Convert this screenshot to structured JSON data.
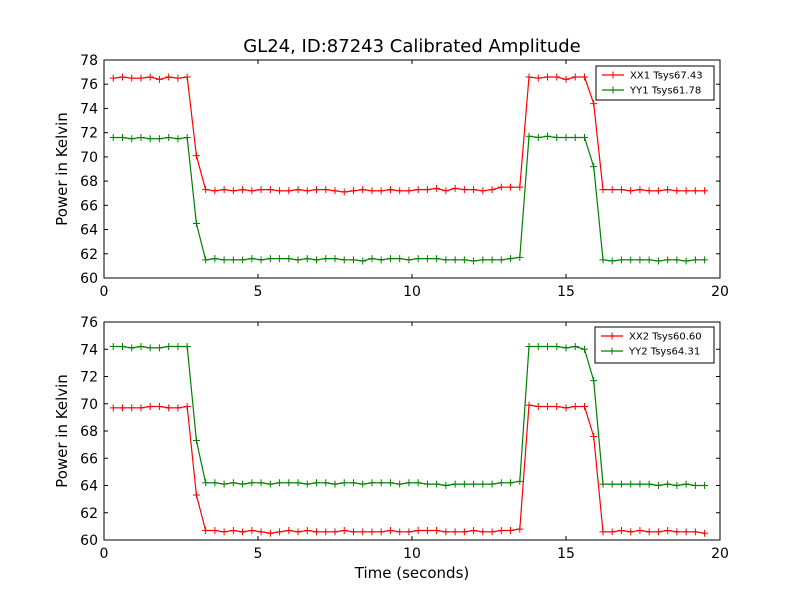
{
  "chart_data": [
    {
      "type": "line",
      "title": "GL24, ID:87243 Calibrated Amplitude",
      "xlabel": "",
      "ylabel": "Power in Kelvin",
      "xlim": [
        0,
        20
      ],
      "ylim": [
        60,
        78
      ],
      "xticks": [
        0,
        5,
        10,
        15,
        20
      ],
      "yticks": [
        60,
        62,
        64,
        66,
        68,
        70,
        72,
        74,
        76,
        78
      ],
      "legend_position": "top-right",
      "grid": false,
      "series": [
        {
          "name": "XX1 Tsys67.43",
          "color": "#ff0000",
          "x": [
            0.3,
            0.6,
            0.9,
            1.2,
            1.5,
            1.8,
            2.1,
            2.4,
            2.7,
            3.0,
            3.3,
            3.6,
            3.9,
            4.2,
            4.5,
            4.8,
            5.1,
            5.4,
            5.7,
            6.0,
            6.3,
            6.6,
            6.9,
            7.2,
            7.5,
            7.8,
            8.1,
            8.4,
            8.7,
            9.0,
            9.3,
            9.6,
            9.9,
            10.2,
            10.5,
            10.8,
            11.1,
            11.4,
            11.7,
            12.0,
            12.3,
            12.6,
            12.9,
            13.2,
            13.5,
            13.8,
            14.1,
            14.4,
            14.7,
            15.0,
            15.3,
            15.6,
            15.9,
            16.2,
            16.5,
            16.8,
            17.1,
            17.4,
            17.7,
            18.0,
            18.3,
            18.6,
            18.9,
            19.2,
            19.5
          ],
          "y": [
            76.5,
            76.6,
            76.5,
            76.5,
            76.6,
            76.4,
            76.6,
            76.5,
            76.6,
            70.1,
            67.3,
            67.2,
            67.3,
            67.2,
            67.3,
            67.2,
            67.3,
            67.3,
            67.2,
            67.2,
            67.3,
            67.2,
            67.3,
            67.3,
            67.2,
            67.1,
            67.2,
            67.3,
            67.2,
            67.2,
            67.3,
            67.2,
            67.2,
            67.3,
            67.3,
            67.4,
            67.2,
            67.4,
            67.3,
            67.3,
            67.2,
            67.3,
            67.5,
            67.5,
            67.5,
            76.6,
            76.5,
            76.6,
            76.6,
            76.4,
            76.6,
            76.6,
            74.4,
            67.3,
            67.3,
            67.3,
            67.2,
            67.3,
            67.2,
            67.2,
            67.3,
            67.2,
            67.2,
            67.2,
            67.2
          ]
        },
        {
          "name": "YY1 Tsys61.78",
          "color": "#008000",
          "x": [
            0.3,
            0.6,
            0.9,
            1.2,
            1.5,
            1.8,
            2.1,
            2.4,
            2.7,
            3.0,
            3.3,
            3.6,
            3.9,
            4.2,
            4.5,
            4.8,
            5.1,
            5.4,
            5.7,
            6.0,
            6.3,
            6.6,
            6.9,
            7.2,
            7.5,
            7.8,
            8.1,
            8.4,
            8.7,
            9.0,
            9.3,
            9.6,
            9.9,
            10.2,
            10.5,
            10.8,
            11.1,
            11.4,
            11.7,
            12.0,
            12.3,
            12.6,
            12.9,
            13.2,
            13.5,
            13.8,
            14.1,
            14.4,
            14.7,
            15.0,
            15.3,
            15.6,
            15.9,
            16.2,
            16.5,
            16.8,
            17.1,
            17.4,
            17.7,
            18.0,
            18.3,
            18.6,
            18.9,
            19.2,
            19.5
          ],
          "y": [
            71.6,
            71.6,
            71.5,
            71.6,
            71.5,
            71.5,
            71.6,
            71.5,
            71.6,
            64.5,
            61.5,
            61.6,
            61.5,
            61.5,
            61.5,
            61.6,
            61.5,
            61.6,
            61.6,
            61.6,
            61.5,
            61.6,
            61.5,
            61.6,
            61.6,
            61.5,
            61.5,
            61.4,
            61.6,
            61.5,
            61.6,
            61.6,
            61.5,
            61.6,
            61.6,
            61.6,
            61.5,
            61.5,
            61.5,
            61.4,
            61.5,
            61.5,
            61.5,
            61.6,
            61.7,
            71.7,
            71.6,
            71.7,
            71.6,
            71.6,
            71.6,
            71.6,
            69.2,
            61.5,
            61.4,
            61.5,
            61.5,
            61.5,
            61.5,
            61.4,
            61.5,
            61.5,
            61.4,
            61.5,
            61.5
          ]
        }
      ]
    },
    {
      "type": "line",
      "title": "",
      "xlabel": "Time (seconds)",
      "ylabel": "Power in Kelvin",
      "xlim": [
        0,
        20
      ],
      "ylim": [
        60,
        76
      ],
      "xticks": [
        0,
        5,
        10,
        15,
        20
      ],
      "yticks": [
        60,
        62,
        64,
        66,
        68,
        70,
        72,
        74,
        76
      ],
      "legend_position": "top-right",
      "grid": false,
      "series": [
        {
          "name": "XX2 Tsys60.60",
          "color": "#ff0000",
          "x": [
            0.3,
            0.6,
            0.9,
            1.2,
            1.5,
            1.8,
            2.1,
            2.4,
            2.7,
            3.0,
            3.3,
            3.6,
            3.9,
            4.2,
            4.5,
            4.8,
            5.1,
            5.4,
            5.7,
            6.0,
            6.3,
            6.6,
            6.9,
            7.2,
            7.5,
            7.8,
            8.1,
            8.4,
            8.7,
            9.0,
            9.3,
            9.6,
            9.9,
            10.2,
            10.5,
            10.8,
            11.1,
            11.4,
            11.7,
            12.0,
            12.3,
            12.6,
            12.9,
            13.2,
            13.5,
            13.8,
            14.1,
            14.4,
            14.7,
            15.0,
            15.3,
            15.6,
            15.9,
            16.2,
            16.5,
            16.8,
            17.1,
            17.4,
            17.7,
            18.0,
            18.3,
            18.6,
            18.9,
            19.2,
            19.5
          ],
          "y": [
            69.7,
            69.7,
            69.7,
            69.7,
            69.8,
            69.8,
            69.7,
            69.7,
            69.8,
            63.3,
            60.7,
            60.7,
            60.6,
            60.7,
            60.6,
            60.7,
            60.6,
            60.5,
            60.6,
            60.7,
            60.6,
            60.7,
            60.6,
            60.6,
            60.6,
            60.7,
            60.6,
            60.6,
            60.6,
            60.6,
            60.7,
            60.6,
            60.6,
            60.7,
            60.7,
            60.7,
            60.6,
            60.6,
            60.6,
            60.7,
            60.6,
            60.6,
            60.7,
            60.7,
            60.8,
            69.9,
            69.8,
            69.8,
            69.8,
            69.7,
            69.8,
            69.8,
            67.6,
            60.6,
            60.6,
            60.7,
            60.6,
            60.7,
            60.6,
            60.6,
            60.7,
            60.6,
            60.6,
            60.6,
            60.5
          ]
        },
        {
          "name": "YY2 Tsys64.31",
          "color": "#008000",
          "x": [
            0.3,
            0.6,
            0.9,
            1.2,
            1.5,
            1.8,
            2.1,
            2.4,
            2.7,
            3.0,
            3.3,
            3.6,
            3.9,
            4.2,
            4.5,
            4.8,
            5.1,
            5.4,
            5.7,
            6.0,
            6.3,
            6.6,
            6.9,
            7.2,
            7.5,
            7.8,
            8.1,
            8.4,
            8.7,
            9.0,
            9.3,
            9.6,
            9.9,
            10.2,
            10.5,
            10.8,
            11.1,
            11.4,
            11.7,
            12.0,
            12.3,
            12.6,
            12.9,
            13.2,
            13.5,
            13.8,
            14.1,
            14.4,
            14.7,
            15.0,
            15.3,
            15.6,
            15.9,
            16.2,
            16.5,
            16.8,
            17.1,
            17.4,
            17.7,
            18.0,
            18.3,
            18.6,
            18.9,
            19.2,
            19.5
          ],
          "y": [
            74.2,
            74.2,
            74.1,
            74.2,
            74.1,
            74.1,
            74.2,
            74.2,
            74.2,
            67.3,
            64.2,
            64.2,
            64.1,
            64.2,
            64.1,
            64.2,
            64.2,
            64.1,
            64.2,
            64.2,
            64.2,
            64.1,
            64.2,
            64.2,
            64.1,
            64.2,
            64.2,
            64.1,
            64.2,
            64.2,
            64.2,
            64.1,
            64.2,
            64.2,
            64.1,
            64.1,
            64.0,
            64.1,
            64.1,
            64.1,
            64.1,
            64.1,
            64.2,
            64.2,
            64.3,
            74.2,
            74.2,
            74.2,
            74.2,
            74.1,
            74.2,
            74.0,
            71.7,
            64.1,
            64.1,
            64.1,
            64.1,
            64.1,
            64.1,
            64.0,
            64.1,
            64.0,
            64.1,
            64.0,
            64.0
          ]
        }
      ]
    }
  ]
}
